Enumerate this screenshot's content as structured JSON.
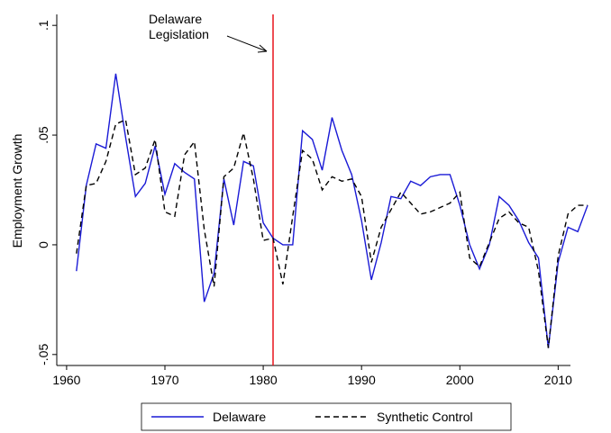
{
  "chart_data": {
    "type": "line",
    "y_label": "Employment Growth",
    "annotation": [
      "Delaware",
      "Legislation"
    ],
    "vline": {
      "x": 1981,
      "color": "#e8141c"
    },
    "x": [
      1961,
      1962,
      1963,
      1964,
      1965,
      1966,
      1967,
      1968,
      1969,
      1970,
      1971,
      1972,
      1973,
      1974,
      1975,
      1976,
      1977,
      1978,
      1979,
      1980,
      1981,
      1982,
      1983,
      1984,
      1985,
      1986,
      1987,
      1988,
      1989,
      1990,
      1991,
      1992,
      1993,
      1994,
      1995,
      1996,
      1997,
      1998,
      1999,
      2000,
      2001,
      2002,
      2003,
      2004,
      2005,
      2006,
      2007,
      2008,
      2009,
      2010,
      2011,
      2012,
      2013
    ],
    "series": [
      {
        "name": "Delaware",
        "color": "#1a1ad6",
        "dash": false,
        "values": [
          -0.012,
          0.027,
          0.046,
          0.044,
          0.078,
          0.049,
          0.022,
          0.028,
          0.045,
          0.023,
          0.037,
          0.033,
          0.03,
          -0.026,
          -0.013,
          0.03,
          0.009,
          0.038,
          0.036,
          0.01,
          0.003,
          0.0,
          0.0,
          0.052,
          0.048,
          0.034,
          0.058,
          0.043,
          0.032,
          0.011,
          -0.016,
          0.001,
          0.022,
          0.021,
          0.029,
          0.027,
          0.031,
          0.032,
          0.032,
          0.018,
          0.0,
          -0.011,
          0.0,
          0.022,
          0.018,
          0.011,
          0.001,
          -0.006,
          -0.047,
          -0.008,
          0.008,
          0.006,
          0.018
        ]
      },
      {
        "name": "Synthetic Control",
        "color": "#000000",
        "dash": true,
        "values": [
          -0.004,
          0.027,
          0.028,
          0.038,
          0.055,
          0.057,
          0.032,
          0.035,
          0.048,
          0.015,
          0.013,
          0.041,
          0.047,
          0.007,
          -0.019,
          0.031,
          0.035,
          0.051,
          0.03,
          0.002,
          0.003,
          -0.018,
          0.013,
          0.043,
          0.039,
          0.025,
          0.031,
          0.029,
          0.03,
          0.022,
          -0.008,
          0.008,
          0.016,
          0.024,
          0.019,
          0.014,
          0.015,
          0.017,
          0.019,
          0.024,
          -0.006,
          -0.01,
          0.001,
          0.012,
          0.015,
          0.01,
          0.008,
          -0.012,
          -0.047,
          -0.005,
          0.014,
          0.018,
          0.018
        ]
      }
    ],
    "xlim": [
      1959,
      2014
    ],
    "xticks": [
      1960,
      1970,
      1980,
      1990,
      2000,
      2010
    ],
    "ylim": [
      -0.055,
      0.105
    ],
    "yticks": [
      {
        "value": -0.05,
        "label": "-.05"
      },
      {
        "value": 0,
        "label": "0"
      },
      {
        "value": 0.05,
        "label": ".05"
      },
      {
        "value": 0.1,
        "label": ".1"
      }
    ]
  }
}
